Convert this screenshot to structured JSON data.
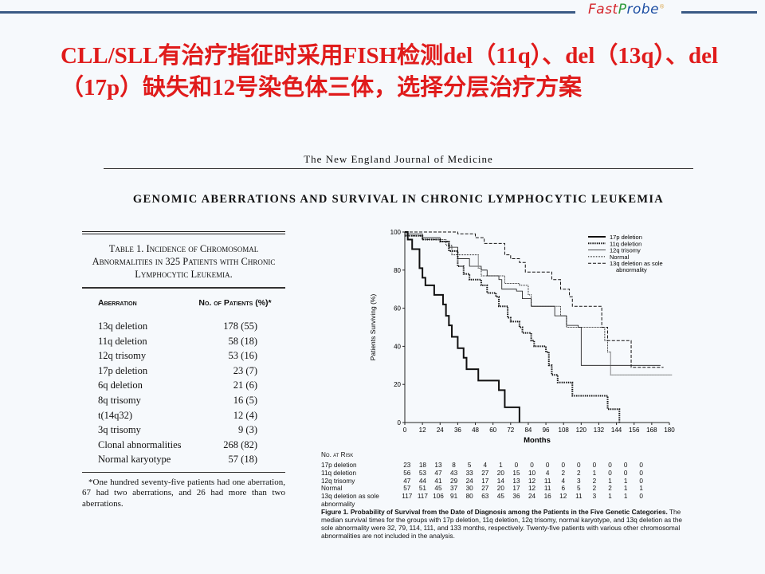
{
  "header": {
    "logo": {
      "fast": "Fast",
      "probe_p": "P",
      "probe_rest": "robe",
      "mark": "®"
    }
  },
  "slide_title": "CLL/SLL有治疗指征时采用FISH检测del（11q）、del（13q）、del（17p）缺失和12号染色体三体，选择分层治疗方案",
  "journal": "The New England Journal of Medicine",
  "headline": "GENOMIC ABERRATIONS AND SURVIVAL IN CHRONIC LYMPHOCYTIC LEUKEMIA",
  "table": {
    "caption": "Table 1. Incidence of Chromosomal Abnormalities in 325 Patients with Chronic Lymphocytic Leukemia.",
    "col1": "Aberration",
    "col2": "No. of Patients (%)*",
    "rows": [
      {
        "a": "13q deletion",
        "v": "178 (55)"
      },
      {
        "a": "11q deletion",
        "v": "58 (18)"
      },
      {
        "a": "12q trisomy",
        "v": "53 (16)"
      },
      {
        "a": "17p deletion",
        "v": "23 (7)"
      },
      {
        "a": "6q deletion",
        "v": "21 (6)"
      },
      {
        "a": "8q trisomy",
        "v": "16 (5)"
      },
      {
        "a": "t(14q32)",
        "v": "12 (4)"
      },
      {
        "a": "3q trisomy",
        "v": "9 (3)"
      },
      {
        "a": "Clonal abnormalities",
        "v": "268 (82)"
      },
      {
        "a": "Normal karyotype",
        "v": "57 (18)"
      }
    ],
    "footnote": "*One hundred seventy-five patients had one aberration, 67 had two aberrations, and 26 had more than two aberrations."
  },
  "chart_data": {
    "type": "line",
    "xlabel": "Months",
    "ylabel": "Patients Surviving (%)",
    "xlim": [
      0,
      180
    ],
    "ylim": [
      0,
      100
    ],
    "xticks": [
      0,
      12,
      24,
      36,
      48,
      60,
      72,
      84,
      96,
      108,
      120,
      132,
      144,
      156,
      168,
      180
    ],
    "yticks": [
      0,
      20,
      40,
      60,
      80,
      100
    ],
    "legend_position": "top-right",
    "step": true,
    "series": [
      {
        "name": "17p deletion",
        "style": "thick-solid",
        "points": [
          [
            0,
            100
          ],
          [
            2,
            96
          ],
          [
            5,
            91
          ],
          [
            10,
            81
          ],
          [
            12,
            76
          ],
          [
            14,
            72
          ],
          [
            20,
            67
          ],
          [
            26,
            62
          ],
          [
            28,
            56
          ],
          [
            30,
            51
          ],
          [
            32,
            45
          ],
          [
            36,
            39
          ],
          [
            40,
            34
          ],
          [
            42,
            28
          ],
          [
            50,
            22
          ],
          [
            64,
            17
          ],
          [
            68,
            8
          ],
          [
            78,
            0
          ]
        ]
      },
      {
        "name": "11q deletion",
        "style": "thick-dotted",
        "points": [
          [
            0,
            98
          ],
          [
            12,
            96
          ],
          [
            24,
            95
          ],
          [
            30,
            90
          ],
          [
            36,
            82
          ],
          [
            40,
            78
          ],
          [
            44,
            75
          ],
          [
            52,
            72
          ],
          [
            56,
            68
          ],
          [
            62,
            66
          ],
          [
            64,
            61
          ],
          [
            70,
            55
          ],
          [
            72,
            53
          ],
          [
            78,
            50
          ],
          [
            80,
            47
          ],
          [
            86,
            43
          ],
          [
            88,
            40
          ],
          [
            96,
            37
          ],
          [
            98,
            30
          ],
          [
            100,
            25
          ],
          [
            104,
            21
          ],
          [
            114,
            14
          ],
          [
            138,
            7
          ],
          [
            146,
            0
          ]
        ]
      },
      {
        "name": "12q trisomy",
        "style": "thin-solid",
        "points": [
          [
            0,
            99
          ],
          [
            12,
            97
          ],
          [
            24,
            95
          ],
          [
            30,
            92
          ],
          [
            36,
            86
          ],
          [
            44,
            82
          ],
          [
            52,
            80
          ],
          [
            56,
            77
          ],
          [
            64,
            75
          ],
          [
            66,
            70
          ],
          [
            76,
            69
          ],
          [
            80,
            65
          ],
          [
            86,
            61
          ],
          [
            100,
            61
          ],
          [
            102,
            56
          ],
          [
            110,
            51
          ],
          [
            118,
            50
          ],
          [
            120,
            30
          ],
          [
            174,
            30
          ]
        ]
      },
      {
        "name": "Normal",
        "style": "thin-dotted",
        "points": [
          [
            0,
            98
          ],
          [
            12,
            96
          ],
          [
            28,
            93
          ],
          [
            32,
            88
          ],
          [
            48,
            88
          ],
          [
            50,
            81
          ],
          [
            52,
            77
          ],
          [
            64,
            77
          ],
          [
            68,
            73
          ],
          [
            78,
            72
          ],
          [
            84,
            67
          ],
          [
            86,
            61
          ],
          [
            98,
            61
          ],
          [
            106,
            56
          ],
          [
            110,
            50
          ],
          [
            130,
            50
          ],
          [
            136,
            43
          ],
          [
            138,
            37
          ],
          [
            140,
            25
          ],
          [
            182,
            25
          ]
        ]
      },
      {
        "name": "13q deletion as sole abnormality",
        "style": "dashed",
        "points": [
          [
            0,
            100
          ],
          [
            30,
            100
          ],
          [
            36,
            99
          ],
          [
            48,
            97
          ],
          [
            54,
            94
          ],
          [
            64,
            94
          ],
          [
            68,
            88
          ],
          [
            72,
            86
          ],
          [
            78,
            84
          ],
          [
            82,
            79
          ],
          [
            96,
            79
          ],
          [
            100,
            75
          ],
          [
            106,
            70
          ],
          [
            112,
            66
          ],
          [
            114,
            61
          ],
          [
            132,
            61
          ],
          [
            134,
            50
          ],
          [
            138,
            43
          ],
          [
            152,
            43
          ],
          [
            154,
            29
          ],
          [
            176,
            29
          ]
        ]
      }
    ]
  },
  "risk": {
    "title": "No. at Risk",
    "rows": [
      {
        "name": "17p deletion",
        "values": [
          23,
          18,
          13,
          8,
          5,
          4,
          1,
          0,
          0,
          0,
          0,
          0,
          0,
          0,
          0,
          0
        ]
      },
      {
        "name": "11q deletion",
        "values": [
          56,
          53,
          47,
          43,
          33,
          27,
          20,
          15,
          10,
          4,
          2,
          2,
          1,
          0,
          0,
          0
        ]
      },
      {
        "name": "12q trisomy",
        "values": [
          47,
          44,
          41,
          29,
          24,
          17,
          14,
          13,
          12,
          11,
          4,
          3,
          2,
          1,
          1,
          0
        ]
      },
      {
        "name": "Normal",
        "values": [
          57,
          51,
          45,
          37,
          30,
          27,
          20,
          17,
          12,
          11,
          6,
          5,
          2,
          2,
          1,
          1
        ]
      },
      {
        "name": "13q deletion as sole abnormality",
        "values": [
          117,
          117,
          106,
          91,
          80,
          63,
          45,
          36,
          24,
          16,
          12,
          11,
          3,
          1,
          1,
          0
        ]
      }
    ]
  },
  "caption": {
    "bold": "Figure 1. Probability of Survival from the Date of Diagnosis among the Patients in the Five Genetic Categories.",
    "text": " The median survival times for the groups with 17p deletion, 11q deletion, 12q trisomy, normal karyotype, and 13q deletion as the sole abnormality were 32, 79, 114, 111, and 133 months, respectively. Twenty-five patients with various other chromosomal abnormalities are not included in the analysis."
  },
  "colors": {
    "title": "#e01b1b",
    "rule": "#3a5a85"
  }
}
